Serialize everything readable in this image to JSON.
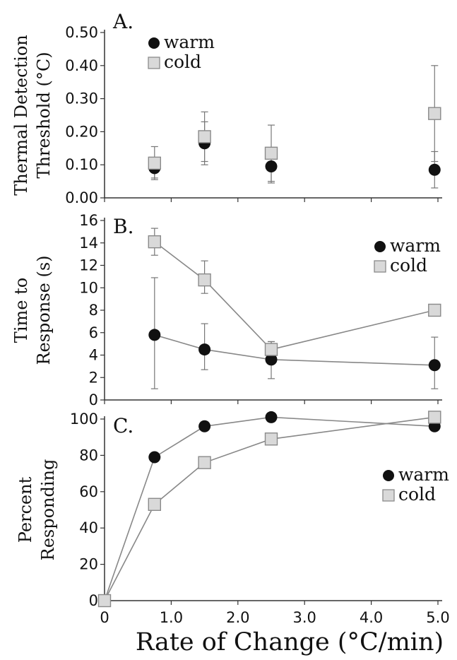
{
  "chart_data": [
    {
      "panel": "A.",
      "type": "scatter",
      "ylabel_lines": [
        "Thermal Detection",
        "Threshold (°C)"
      ],
      "ylim": [
        0,
        0.5
      ],
      "yticks": [
        0,
        0.1,
        0.2,
        0.3,
        0.4,
        0.5
      ],
      "ytick_labels": [
        "0.00",
        "0.10",
        "0.20",
        "0.30",
        "0.40",
        "0.50"
      ],
      "xlim": [
        0,
        5
      ],
      "legend": {
        "position": "top-left",
        "entries": [
          "warm",
          "cold"
        ]
      },
      "series": [
        {
          "name": "warm",
          "marker": "circle",
          "x": [
            0.75,
            1.5,
            2.5,
            4.95
          ],
          "y": [
            0.09,
            0.165,
            0.095,
            0.085
          ],
          "err_low": [
            0.06,
            0.1,
            0.045,
            0.03
          ],
          "err_high": [
            0.1,
            0.23,
            0.14,
            0.14
          ]
        },
        {
          "name": "cold",
          "marker": "square",
          "x": [
            0.75,
            1.5,
            2.5,
            4.95
          ],
          "y": [
            0.105,
            0.185,
            0.135,
            0.255
          ],
          "err_low": [
            0.055,
            0.11,
            0.05,
            0.11
          ],
          "err_high": [
            0.155,
            0.26,
            0.22,
            0.4
          ]
        }
      ]
    },
    {
      "panel": "B.",
      "type": "line",
      "ylabel_lines": [
        "Time to",
        "Response (s)"
      ],
      "ylim": [
        0,
        16
      ],
      "yticks": [
        0,
        2,
        4,
        6,
        8,
        10,
        12,
        14,
        16
      ],
      "ytick_labels": [
        "0",
        "2",
        "4",
        "6",
        "8",
        "10",
        "12",
        "14",
        "16"
      ],
      "xlim": [
        0,
        5
      ],
      "legend": {
        "position": "right",
        "entries": [
          "warm",
          "cold"
        ]
      },
      "series": [
        {
          "name": "warm",
          "marker": "circle",
          "x": [
            0.75,
            1.5,
            2.5,
            4.95
          ],
          "y": [
            5.8,
            4.5,
            3.6,
            3.1
          ],
          "err_low": [
            1.0,
            2.7,
            1.9,
            1.0
          ],
          "err_high": [
            10.9,
            6.8,
            5.2,
            5.6
          ]
        },
        {
          "name": "cold",
          "marker": "square",
          "x": [
            0.75,
            1.5,
            2.5,
            4.95
          ],
          "y": [
            14.1,
            10.7,
            4.5,
            8.0
          ],
          "err_low": [
            12.9,
            9.5,
            3.8,
            7.6
          ],
          "err_high": [
            15.3,
            12.4,
            5.2,
            8.4
          ]
        }
      ]
    },
    {
      "panel": "C.",
      "type": "line",
      "ylabel_lines": [
        "Percent",
        "Responding"
      ],
      "ylim": [
        0,
        100
      ],
      "yticks": [
        0,
        20,
        40,
        60,
        80,
        100
      ],
      "ytick_labels": [
        "0",
        "20",
        "40",
        "60",
        "80",
        "100"
      ],
      "xlabel": "Rate of Change (°C/min)",
      "xlim": [
        0,
        5
      ],
      "xticks": [
        0,
        1,
        2,
        3,
        4,
        5
      ],
      "xtick_labels": [
        "0",
        "1.0",
        "2.0",
        "3.0",
        "4.0",
        "5.0"
      ],
      "legend": {
        "position": "right",
        "entries": [
          "warm",
          "cold"
        ]
      },
      "series": [
        {
          "name": "warm",
          "marker": "circle",
          "x": [
            0,
            0.75,
            1.5,
            2.5,
            4.95
          ],
          "y": [
            0,
            79,
            96,
            101,
            96
          ]
        },
        {
          "name": "cold",
          "marker": "square",
          "x": [
            0,
            0.75,
            1.5,
            2.5,
            4.95
          ],
          "y": [
            0,
            53,
            76,
            89,
            101
          ]
        }
      ]
    }
  ],
  "colors": {
    "warm_fill": "#111111",
    "cold_fill": "#d9d9d9",
    "cold_stroke": "#8a8a8a",
    "line": "#888888",
    "axis": "#333333",
    "errorbar": "#777777"
  }
}
